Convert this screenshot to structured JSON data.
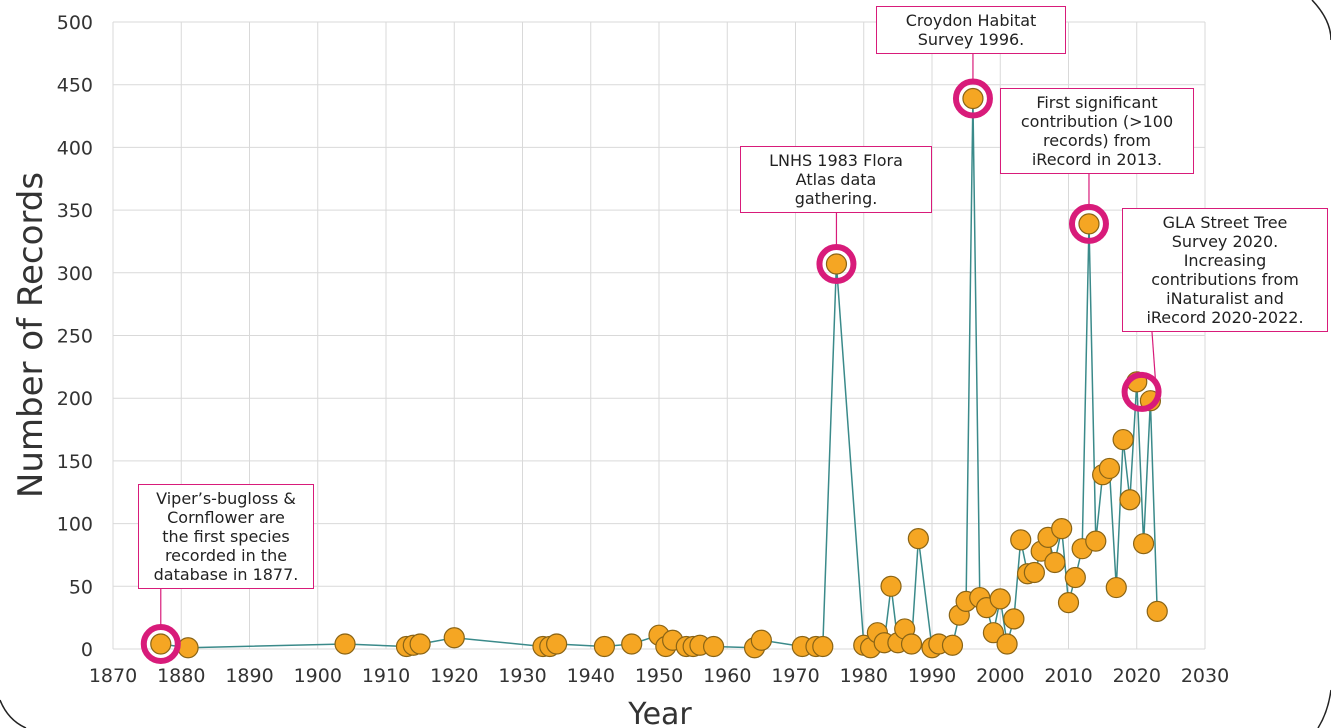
{
  "colors": {
    "line": "#3a8a8a",
    "marker": "#f5a623",
    "highlight": "#d81b7a"
  },
  "chart_data": {
    "type": "scatter",
    "xlabel": "Year",
    "ylabel": "Number of Records",
    "xlim": [
      1870,
      2030
    ],
    "ylim": [
      0,
      500
    ],
    "x_ticks": [
      "1870",
      "1880",
      "1890",
      "1900",
      "1910",
      "1920",
      "1930",
      "1940",
      "1950",
      "1960",
      "1970",
      "1980",
      "1990",
      "2000",
      "2010",
      "2020",
      "2030"
    ],
    "y_ticks": [
      "0",
      "50",
      "100",
      "150",
      "200",
      "250",
      "300",
      "350",
      "400",
      "450",
      "500"
    ],
    "grid": true,
    "series": [
      {
        "markers": "circle",
        "line": true,
        "x": [
          1877,
          1881,
          1904,
          1913,
          1914,
          1915,
          1920,
          1933,
          1934,
          1935,
          1942,
          1946,
          1950,
          1951,
          1952,
          1954,
          1955,
          1956,
          1958,
          1964,
          1965,
          1971,
          1973,
          1974,
          1976,
          1980,
          1981,
          1982,
          1983,
          1984,
          1985,
          1986,
          1987,
          1988,
          1990,
          1991,
          1993,
          1994,
          1995,
          1996,
          1997,
          1998,
          1999,
          2000,
          2001,
          2002,
          2003,
          2004,
          2005,
          2006,
          2007,
          2008,
          2009,
          2010,
          2011,
          2012,
          2013,
          2014,
          2015,
          2016,
          2017,
          2018,
          2019,
          2020,
          2021,
          2022,
          2023
        ],
        "y": [
          4,
          1,
          4,
          2,
          3,
          4,
          9,
          2,
          2,
          4,
          2,
          4,
          11,
          2,
          7,
          2,
          2,
          3,
          2,
          1,
          7,
          2,
          2,
          2,
          307,
          3,
          1,
          13,
          5,
          50,
          5,
          16,
          4,
          88,
          1,
          4,
          3,
          27,
          38,
          439,
          41,
          33,
          13,
          40,
          4,
          24,
          87,
          60,
          61,
          78,
          89,
          69,
          96,
          37,
          57,
          80,
          339,
          86,
          139,
          144,
          49,
          167,
          119,
          213,
          84,
          198,
          30
        ]
      }
    ],
    "highlights": [
      1877,
      1976,
      1996,
      2013,
      2021
    ],
    "annotations": [
      {
        "text": "Viper’s-bugloss &\nCornflower are\nthe first species\nrecorded in the\ndatabase in 1877.",
        "x": 1877,
        "y": 4
      },
      {
        "text": "LNHS 1983 Flora\nAtlas data\ngathering.",
        "x": 1976,
        "y": 307
      },
      {
        "text": "Croydon Habitat\nSurvey 1996.",
        "x": 1996,
        "y": 439
      },
      {
        "text": "First significant\ncontribution (>100\nrecords) from\niRecord in 2013.",
        "x": 2013,
        "y": 339
      },
      {
        "text": "GLA Street Tree\nSurvey 2020.\nIncreasing\ncontributions from\niNaturalist and\niRecord 2020-2022.",
        "x": 2021,
        "y": 205
      }
    ]
  }
}
